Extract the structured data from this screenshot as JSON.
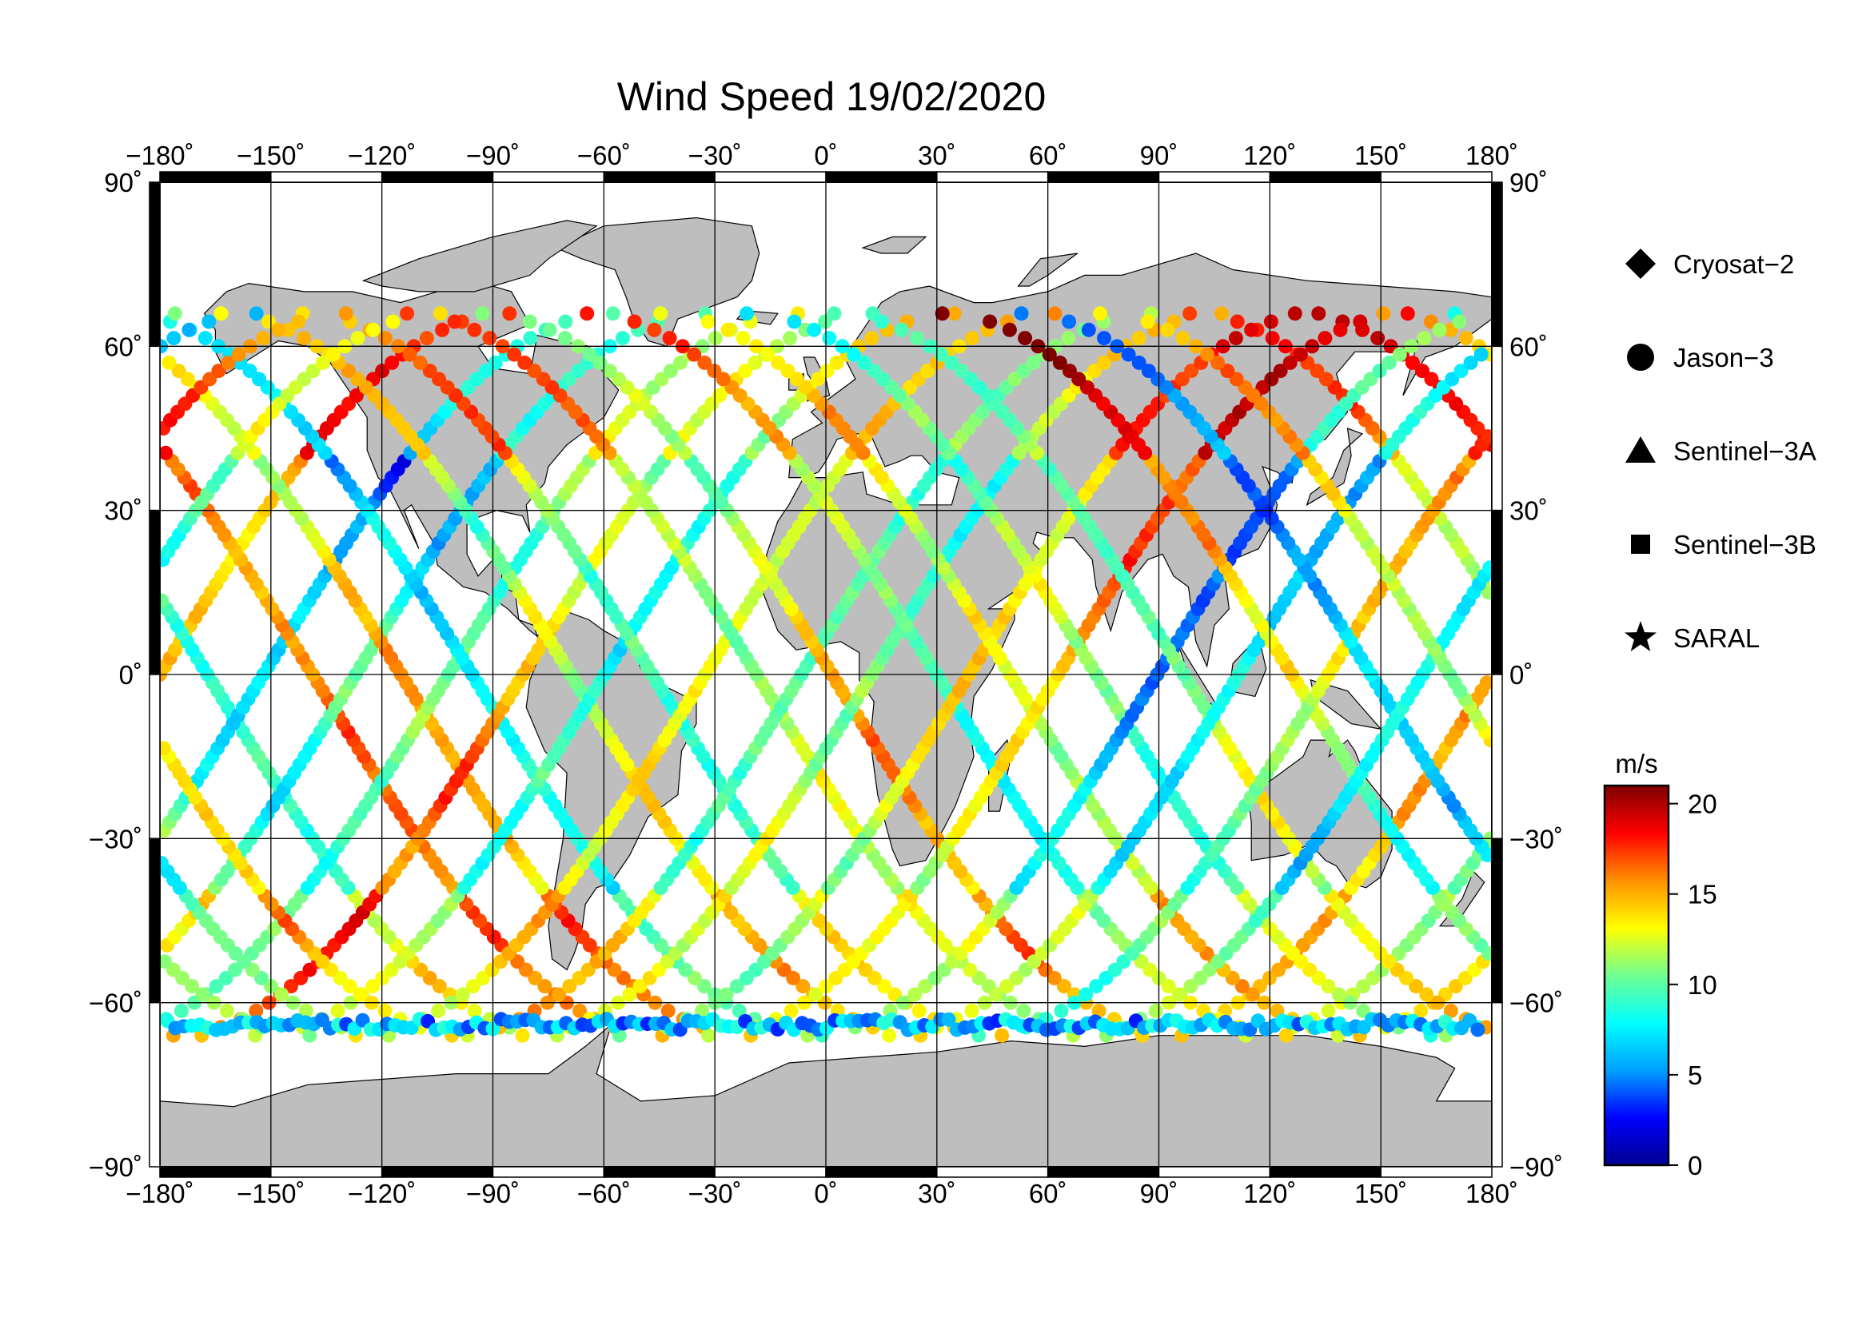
{
  "title": "Wind Speed 19/02/2020",
  "map": {
    "lon_range": [
      -180,
      180
    ],
    "lat_range": [
      -90,
      90
    ],
    "lon_ticks": [
      "−180˚",
      "−150˚",
      "−120˚",
      "−90˚",
      "−60˚",
      "−30˚",
      "0˚",
      "30˚",
      "60˚",
      "90˚",
      "120˚",
      "150˚",
      "180˚"
    ],
    "lat_ticks": [
      "90˚",
      "60˚",
      "30˚",
      "0˚",
      "−30˚",
      "−60˚",
      "−90˚"
    ],
    "right_lat_ticks": [
      "90˚",
      "60˚",
      "30˚",
      "0˚",
      "−30˚",
      "−60˚",
      "−90˚"
    ],
    "grid": true,
    "land_color": "#bebebe",
    "ocean_color": "#ffffff"
  },
  "legend": {
    "items": [
      {
        "symbol": "diamond",
        "label": "Cryosat−2"
      },
      {
        "symbol": "circle",
        "label": "Jason−3"
      },
      {
        "symbol": "triangle",
        "label": "Sentinel−3A"
      },
      {
        "symbol": "square",
        "label": "Sentinel−3B"
      },
      {
        "symbol": "star",
        "label": "SARAL"
      }
    ],
    "placement": "right"
  },
  "colorbar": {
    "unit": "m/s",
    "range": [
      0,
      21
    ],
    "ticks": [
      "20",
      "15",
      "10",
      "5",
      "0"
    ],
    "tick_values": [
      20,
      15,
      10,
      5,
      0
    ],
    "colormap": [
      "#00008f",
      "#0000ff",
      "#00a0ff",
      "#00ffff",
      "#70ff90",
      "#ffff00",
      "#ff9000",
      "#ff0000",
      "#800000"
    ]
  }
}
